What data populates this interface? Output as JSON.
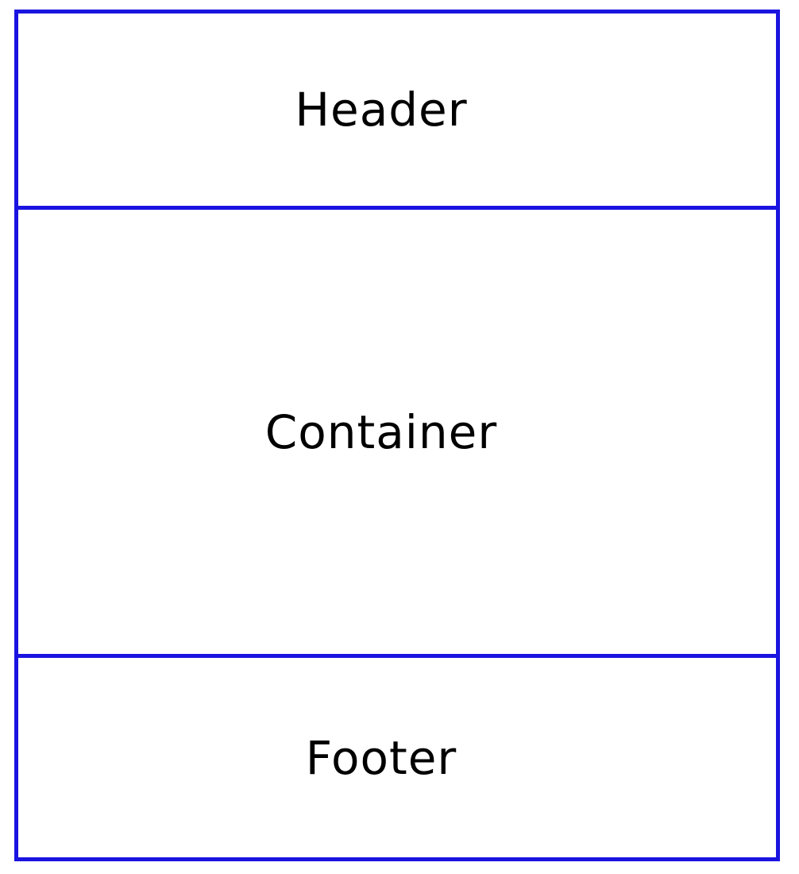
{
  "sections": {
    "header": {
      "label": "Header"
    },
    "container": {
      "label": "Container"
    },
    "footer": {
      "label": "Footer"
    }
  },
  "colors": {
    "border": "#1a14e0",
    "text": "#000000",
    "background": "#ffffff"
  }
}
